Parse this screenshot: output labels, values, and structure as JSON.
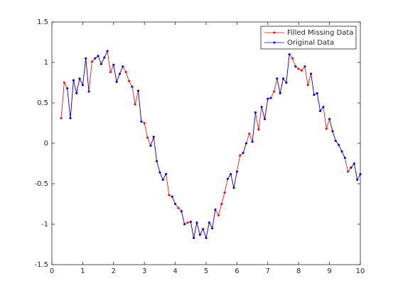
{
  "chart_data": {
    "type": "line",
    "x": [
      0.3,
      0.4,
      0.5,
      0.6,
      0.7,
      0.8,
      0.9,
      1.0,
      1.1,
      1.2,
      1.3,
      1.4,
      1.5,
      1.6,
      1.7,
      1.8,
      1.9,
      2.0,
      2.1,
      2.2,
      2.3,
      2.4,
      2.5,
      2.6,
      2.7,
      2.8,
      2.9,
      3.0,
      3.1,
      3.2,
      3.3,
      3.4,
      3.5,
      3.6,
      3.7,
      3.8,
      3.9,
      4.0,
      4.1,
      4.2,
      4.3,
      4.4,
      4.5,
      4.6,
      4.7,
      4.8,
      4.9,
      5.0,
      5.1,
      5.2,
      5.3,
      5.4,
      5.5,
      5.6,
      5.7,
      5.8,
      5.9,
      6.0,
      6.1,
      6.2,
      6.3,
      6.4,
      6.5,
      6.6,
      6.7,
      6.8,
      6.9,
      7.0,
      7.1,
      7.2,
      7.3,
      7.4,
      7.5,
      7.6,
      7.7,
      7.8,
      7.9,
      8.0,
      8.1,
      8.2,
      8.3,
      8.4,
      8.5,
      8.6,
      8.7,
      8.8,
      8.9,
      9.0,
      9.1,
      9.2,
      9.3,
      9.4,
      9.5,
      9.6,
      9.7,
      9.8,
      9.9,
      10.0
    ],
    "series": [
      {
        "name": "Filled Missing Data",
        "color": "#ff0000",
        "values": [
          0.31,
          0.75,
          0.68,
          0.31,
          0.78,
          0.62,
          0.8,
          0.72,
          1.05,
          0.64,
          1.01,
          1.05,
          1.08,
          0.98,
          1.06,
          1.14,
          0.88,
          0.97,
          0.76,
          0.86,
          0.95,
          0.88,
          0.77,
          0.7,
          0.48,
          0.65,
          0.27,
          0.25,
          0.07,
          -0.03,
          0.08,
          -0.22,
          -0.36,
          -0.45,
          -0.38,
          -0.64,
          -0.66,
          -0.75,
          -0.8,
          -0.84,
          -1.0,
          -0.98,
          -0.97,
          -1.17,
          -0.98,
          -1.13,
          -1.06,
          -1.17,
          -0.98,
          -1.05,
          -0.82,
          -0.89,
          -0.75,
          -0.61,
          -0.44,
          -0.38,
          -0.55,
          -0.35,
          -0.15,
          -0.12,
          0.0,
          0.12,
          0.02,
          0.38,
          0.17,
          0.45,
          0.3,
          0.55,
          0.56,
          0.64,
          0.8,
          0.62,
          0.8,
          0.75,
          1.1,
          1.05,
          0.95,
          0.92,
          0.9,
          0.95,
          0.72,
          0.86,
          0.6,
          0.62,
          0.4,
          0.45,
          0.18,
          0.3,
          0.15,
          0.03,
          -0.02,
          -0.1,
          -0.18,
          -0.35,
          -0.3,
          -0.25,
          -0.45,
          -0.38
        ]
      },
      {
        "name": "Original Data",
        "color": "#0000ff",
        "values": [
          null,
          null,
          0.68,
          0.31,
          0.78,
          0.62,
          0.8,
          0.72,
          1.05,
          0.64,
          null,
          1.05,
          1.08,
          0.98,
          1.06,
          1.14,
          null,
          0.97,
          0.76,
          0.86,
          0.95,
          null,
          null,
          0.7,
          null,
          0.65,
          0.27,
          null,
          null,
          -0.03,
          0.08,
          -0.22,
          -0.36,
          -0.45,
          -0.38,
          null,
          -0.66,
          -0.75,
          null,
          -0.84,
          -1.0,
          null,
          -0.97,
          -1.17,
          -0.98,
          -1.13,
          -1.06,
          -1.17,
          -0.98,
          -1.05,
          -0.82,
          null,
          null,
          null,
          -0.44,
          -0.38,
          -0.55,
          -0.35,
          null,
          -0.12,
          0.0,
          null,
          0.02,
          0.38,
          null,
          0.45,
          0.3,
          0.55,
          0.56,
          null,
          0.8,
          0.62,
          0.8,
          0.75,
          1.1,
          null,
          0.95,
          null,
          null,
          0.95,
          null,
          0.86,
          0.6,
          0.62,
          0.4,
          0.45,
          null,
          0.3,
          0.15,
          0.03,
          -0.02,
          -0.1,
          -0.18,
          null,
          -0.3,
          -0.25,
          -0.45,
          -0.38
        ]
      }
    ],
    "xlim": [
      0,
      10
    ],
    "xticks": [
      0,
      1,
      2,
      3,
      4,
      5,
      6,
      7,
      8,
      9,
      10
    ],
    "ylim": [
      -1.5,
      1.5
    ],
    "yticks": [
      -1.5,
      -1,
      -0.5,
      0,
      0.5,
      1,
      1.5
    ],
    "legend": "northeast"
  }
}
